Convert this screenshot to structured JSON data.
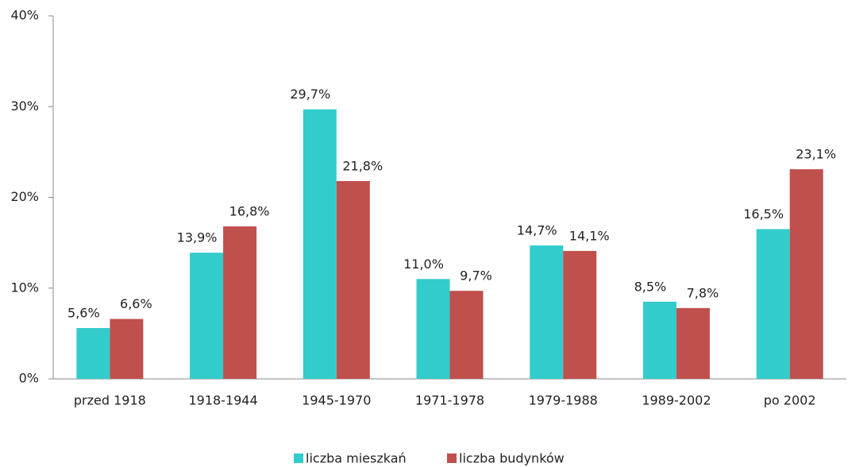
{
  "chart_data": {
    "type": "bar",
    "categories": [
      "przed 1918",
      "1918-1944",
      "1945-1970",
      "1971-1978",
      "1979-1988",
      "1989-2002",
      "po 2002"
    ],
    "series": [
      {
        "name": "liczba mieszkań",
        "color": "#33cccc",
        "values": [
          5.6,
          13.9,
          29.7,
          11.0,
          14.7,
          8.5,
          16.5
        ],
        "value_labels": [
          "5,6%",
          "13,9%",
          "29,7%",
          "11,0%",
          "14,7%",
          "8,5%",
          "16,5%"
        ]
      },
      {
        "name": "liczba budynków",
        "color": "#c0504d",
        "values": [
          6.6,
          16.8,
          21.8,
          9.7,
          14.1,
          7.8,
          23.1
        ],
        "value_labels": [
          "6,6%",
          "16,8%",
          "21,8%",
          "9,7%",
          "14,1%",
          "7,8%",
          "23,1%"
        ]
      }
    ],
    "ylim": [
      0,
      40
    ],
    "yticks": [
      {
        "value": 0,
        "label": "0%"
      },
      {
        "value": 10,
        "label": "10%"
      },
      {
        "value": 20,
        "label": "20%"
      },
      {
        "value": 30,
        "label": "30%"
      },
      {
        "value": 40,
        "label": "40%"
      }
    ],
    "grid": false,
    "legend": "bottom"
  }
}
